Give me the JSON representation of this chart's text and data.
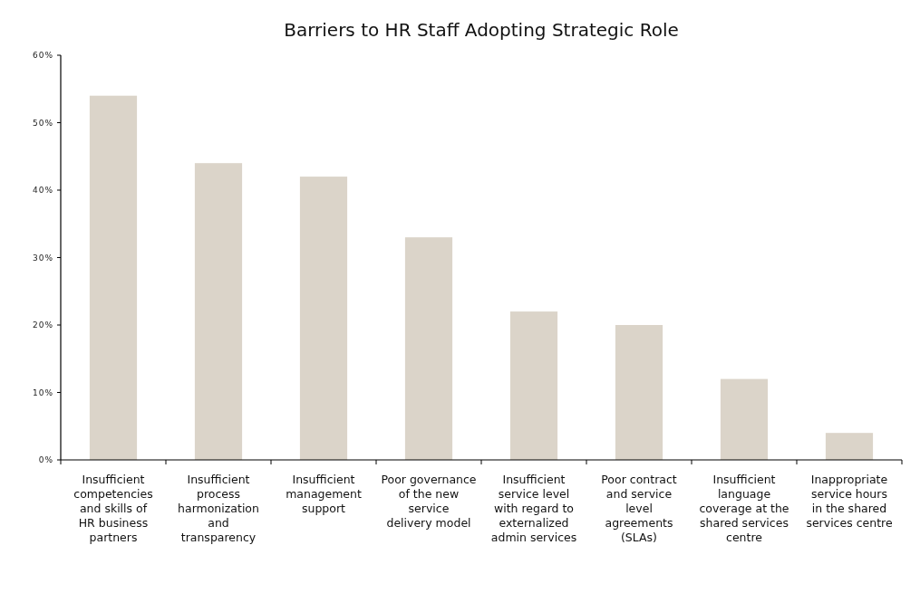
{
  "chart_data": {
    "type": "bar",
    "title": "Barriers to HR Staff Adopting Strategic Role",
    "categories": [
      "Insufficient competencies and skills of HR business partners",
      "Insufficient process harmonization and transparency",
      "Insufficient management support",
      "Poor governance of the new service delivery model",
      "Insufficient service level with regard to externalized admin services",
      "Poor contract and service level agreements (SLAs)",
      "Insufficient language coverage at the shared services centre",
      "Inappropriate service hours in the shared services centre"
    ],
    "values": [
      54,
      44,
      42,
      33,
      22,
      20,
      12,
      4
    ],
    "color": "#dbd4c9",
    "ylim": [
      0,
      60
    ],
    "yticks": [
      {
        "value": 0,
        "label": "0%"
      },
      {
        "value": 10,
        "label": "10%"
      },
      {
        "value": 20,
        "label": "20%"
      },
      {
        "value": 30,
        "label": "30%"
      },
      {
        "value": 40,
        "label": "40%"
      },
      {
        "value": 50,
        "label": "50%"
      },
      {
        "value": 60,
        "label": "60%"
      }
    ],
    "grid": false
  }
}
